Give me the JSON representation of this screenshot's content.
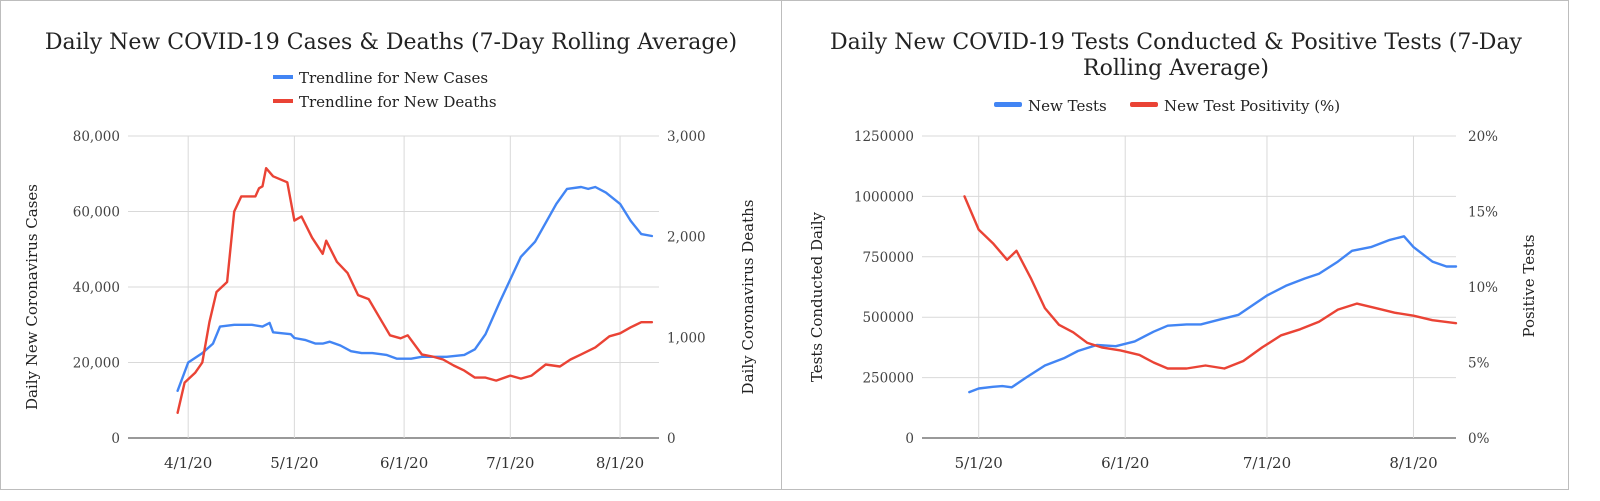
{
  "chart_data": [
    {
      "type": "line",
      "title": "Daily New COVID-19 Cases & Deaths (7-Day Rolling Average)",
      "x_ticks": [
        "4/1/20",
        "5/1/20",
        "6/1/20",
        "7/1/20",
        "8/1/20"
      ],
      "x_tick_dates": [
        "2020-04-01",
        "2020-05-01",
        "2020-06-01",
        "2020-07-01",
        "2020-08-01"
      ],
      "xlim": [
        "2020-03-15",
        "2020-08-12"
      ],
      "ylabel_left": "Daily New Coronavirus Cases",
      "ylabel_right": "Daily Coronavirus Deaths",
      "y_left_ticks": [
        "0",
        "20,000",
        "40,000",
        "60,000",
        "80,000"
      ],
      "y_right_ticks": [
        "0",
        "1,000",
        "2,000",
        "3,000"
      ],
      "ylim_left": [
        0,
        80000
      ],
      "ylim_right": [
        0,
        3000
      ],
      "grid": true,
      "legend_position": "top",
      "series": [
        {
          "name": "Trendline for New Cases",
          "axis": "left",
          "color": "#4285f4",
          "points": [
            [
              "2020-03-29",
              12500
            ],
            [
              "2020-04-01",
              20000
            ],
            [
              "2020-04-05",
              22500
            ],
            [
              "2020-04-08",
              25000
            ],
            [
              "2020-04-10",
              29500
            ],
            [
              "2020-04-14",
              30000
            ],
            [
              "2020-04-19",
              30000
            ],
            [
              "2020-04-22",
              29500
            ],
            [
              "2020-04-24",
              30500
            ],
            [
              "2020-04-25",
              28000
            ],
            [
              "2020-04-30",
              27500
            ],
            [
              "2020-05-01",
              26500
            ],
            [
              "2020-05-04",
              26000
            ],
            [
              "2020-05-07",
              25000
            ],
            [
              "2020-05-09",
              25000
            ],
            [
              "2020-05-11",
              25500
            ],
            [
              "2020-05-14",
              24500
            ],
            [
              "2020-05-17",
              23000
            ],
            [
              "2020-05-20",
              22500
            ],
            [
              "2020-05-23",
              22500
            ],
            [
              "2020-05-27",
              22000
            ],
            [
              "2020-05-30",
              21000
            ],
            [
              "2020-06-03",
              21000
            ],
            [
              "2020-06-06",
              21500
            ],
            [
              "2020-06-09",
              21500
            ],
            [
              "2020-06-13",
              21500
            ],
            [
              "2020-06-18",
              22000
            ],
            [
              "2020-06-21",
              23500
            ],
            [
              "2020-06-24",
              27500
            ],
            [
              "2020-06-28",
              36000
            ],
            [
              "2020-07-01",
              42000
            ],
            [
              "2020-07-04",
              48000
            ],
            [
              "2020-07-08",
              52000
            ],
            [
              "2020-07-11",
              57000
            ],
            [
              "2020-07-14",
              62000
            ],
            [
              "2020-07-17",
              66000
            ],
            [
              "2020-07-21",
              66500
            ],
            [
              "2020-07-23",
              66000
            ],
            [
              "2020-07-25",
              66500
            ],
            [
              "2020-07-28",
              65000
            ],
            [
              "2020-08-01",
              62000
            ],
            [
              "2020-08-04",
              57500
            ],
            [
              "2020-08-07",
              54000
            ],
            [
              "2020-08-10",
              53500
            ]
          ]
        },
        {
          "name": "Trendline for New Deaths",
          "axis": "right",
          "color": "#ea4335",
          "points": [
            [
              "2020-03-29",
              250
            ],
            [
              "2020-03-31",
              550
            ],
            [
              "2020-04-03",
              650
            ],
            [
              "2020-04-05",
              750
            ],
            [
              "2020-04-07",
              1150
            ],
            [
              "2020-04-09",
              1450
            ],
            [
              "2020-04-12",
              1550
            ],
            [
              "2020-04-14",
              2250
            ],
            [
              "2020-04-16",
              2400
            ],
            [
              "2020-04-20",
              2400
            ],
            [
              "2020-04-21",
              2480
            ],
            [
              "2020-04-22",
              2500
            ],
            [
              "2020-04-23",
              2680
            ],
            [
              "2020-04-25",
              2600
            ],
            [
              "2020-04-29",
              2540
            ],
            [
              "2020-05-01",
              2160
            ],
            [
              "2020-05-03",
              2200
            ],
            [
              "2020-05-06",
              1990
            ],
            [
              "2020-05-09",
              1830
            ],
            [
              "2020-05-10",
              1960
            ],
            [
              "2020-05-13",
              1750
            ],
            [
              "2020-05-16",
              1640
            ],
            [
              "2020-05-19",
              1420
            ],
            [
              "2020-05-22",
              1380
            ],
            [
              "2020-05-25",
              1200
            ],
            [
              "2020-05-28",
              1020
            ],
            [
              "2020-05-31",
              990
            ],
            [
              "2020-06-02",
              1020
            ],
            [
              "2020-06-06",
              830
            ],
            [
              "2020-06-09",
              810
            ],
            [
              "2020-06-12",
              780
            ],
            [
              "2020-06-15",
              720
            ],
            [
              "2020-06-18",
              670
            ],
            [
              "2020-06-21",
              600
            ],
            [
              "2020-06-24",
              600
            ],
            [
              "2020-06-27",
              570
            ],
            [
              "2020-07-01",
              620
            ],
            [
              "2020-07-04",
              590
            ],
            [
              "2020-07-07",
              620
            ],
            [
              "2020-07-11",
              730
            ],
            [
              "2020-07-15",
              710
            ],
            [
              "2020-07-18",
              780
            ],
            [
              "2020-07-21",
              830
            ],
            [
              "2020-07-25",
              900
            ],
            [
              "2020-07-29",
              1010
            ],
            [
              "2020-08-01",
              1040
            ],
            [
              "2020-08-04",
              1100
            ],
            [
              "2020-08-07",
              1150
            ],
            [
              "2020-08-10",
              1150
            ]
          ]
        }
      ]
    },
    {
      "type": "line",
      "title": "Daily New COVID-19 Tests Conducted & Positive Tests (7-Day Rolling Average)",
      "title_lines": [
        "Daily New COVID-19 Tests Conducted & Positive Tests (7-Day",
        "Rolling Average)"
      ],
      "x_ticks": [
        "5/1/20",
        "6/1/20",
        "7/1/20",
        "8/1/20"
      ],
      "x_tick_dates": [
        "2020-05-01",
        "2020-06-01",
        "2020-07-01",
        "2020-08-01"
      ],
      "xlim": [
        "2020-04-19",
        "2020-08-10"
      ],
      "ylabel_left": "Tests Conducted Daily",
      "ylabel_right": "Positive Tests",
      "y_left_ticks": [
        "0",
        "250000",
        "500000",
        "750000",
        "1000000",
        "1250000"
      ],
      "y_right_ticks": [
        "0%",
        "5%",
        "10%",
        "15%",
        "20%"
      ],
      "ylim_left": [
        0,
        1250000
      ],
      "ylim_right": [
        0,
        20
      ],
      "grid": true,
      "legend_position": "top",
      "series": [
        {
          "name": "New Tests",
          "axis": "left",
          "color": "#4285f4",
          "points": [
            [
              "2020-04-29",
              190000
            ],
            [
              "2020-05-01",
              205000
            ],
            [
              "2020-05-04",
              212000
            ],
            [
              "2020-05-06",
              215000
            ],
            [
              "2020-05-08",
              210000
            ],
            [
              "2020-05-11",
              250000
            ],
            [
              "2020-05-15",
              300000
            ],
            [
              "2020-05-19",
              330000
            ],
            [
              "2020-05-22",
              360000
            ],
            [
              "2020-05-26",
              385000
            ],
            [
              "2020-05-30",
              380000
            ],
            [
              "2020-06-03",
              400000
            ],
            [
              "2020-06-07",
              440000
            ],
            [
              "2020-06-10",
              465000
            ],
            [
              "2020-06-14",
              470000
            ],
            [
              "2020-06-17",
              470000
            ],
            [
              "2020-06-21",
              490000
            ],
            [
              "2020-06-25",
              510000
            ],
            [
              "2020-06-28",
              550000
            ],
            [
              "2020-07-01",
              590000
            ],
            [
              "2020-07-05",
              630000
            ],
            [
              "2020-07-09",
              660000
            ],
            [
              "2020-07-12",
              680000
            ],
            [
              "2020-07-16",
              730000
            ],
            [
              "2020-07-19",
              775000
            ],
            [
              "2020-07-23",
              790000
            ],
            [
              "2020-07-27",
              820000
            ],
            [
              "2020-07-30",
              835000
            ],
            [
              "2020-08-01",
              790000
            ],
            [
              "2020-08-05",
              730000
            ],
            [
              "2020-08-08",
              710000
            ],
            [
              "2020-08-10",
              710000
            ]
          ]
        },
        {
          "name": "New Test Positivity (%)",
          "axis": "right",
          "color": "#ea4335",
          "points": [
            [
              "2020-04-28",
              16.0
            ],
            [
              "2020-05-01",
              13.8
            ],
            [
              "2020-05-04",
              12.9
            ],
            [
              "2020-05-07",
              11.8
            ],
            [
              "2020-05-09",
              12.4
            ],
            [
              "2020-05-12",
              10.6
            ],
            [
              "2020-05-15",
              8.6
            ],
            [
              "2020-05-18",
              7.5
            ],
            [
              "2020-05-21",
              7.0
            ],
            [
              "2020-05-24",
              6.3
            ],
            [
              "2020-05-27",
              6.0
            ],
            [
              "2020-05-31",
              5.8
            ],
            [
              "2020-06-04",
              5.5
            ],
            [
              "2020-06-07",
              5.0
            ],
            [
              "2020-06-10",
              4.6
            ],
            [
              "2020-06-14",
              4.6
            ],
            [
              "2020-06-18",
              4.8
            ],
            [
              "2020-06-22",
              4.6
            ],
            [
              "2020-06-26",
              5.1
            ],
            [
              "2020-06-30",
              6.0
            ],
            [
              "2020-07-04",
              6.8
            ],
            [
              "2020-07-08",
              7.2
            ],
            [
              "2020-07-12",
              7.7
            ],
            [
              "2020-07-16",
              8.5
            ],
            [
              "2020-07-20",
              8.9
            ],
            [
              "2020-07-24",
              8.6
            ],
            [
              "2020-07-28",
              8.3
            ],
            [
              "2020-08-01",
              8.1
            ],
            [
              "2020-08-05",
              7.8
            ],
            [
              "2020-08-10",
              7.6
            ]
          ]
        }
      ]
    }
  ]
}
